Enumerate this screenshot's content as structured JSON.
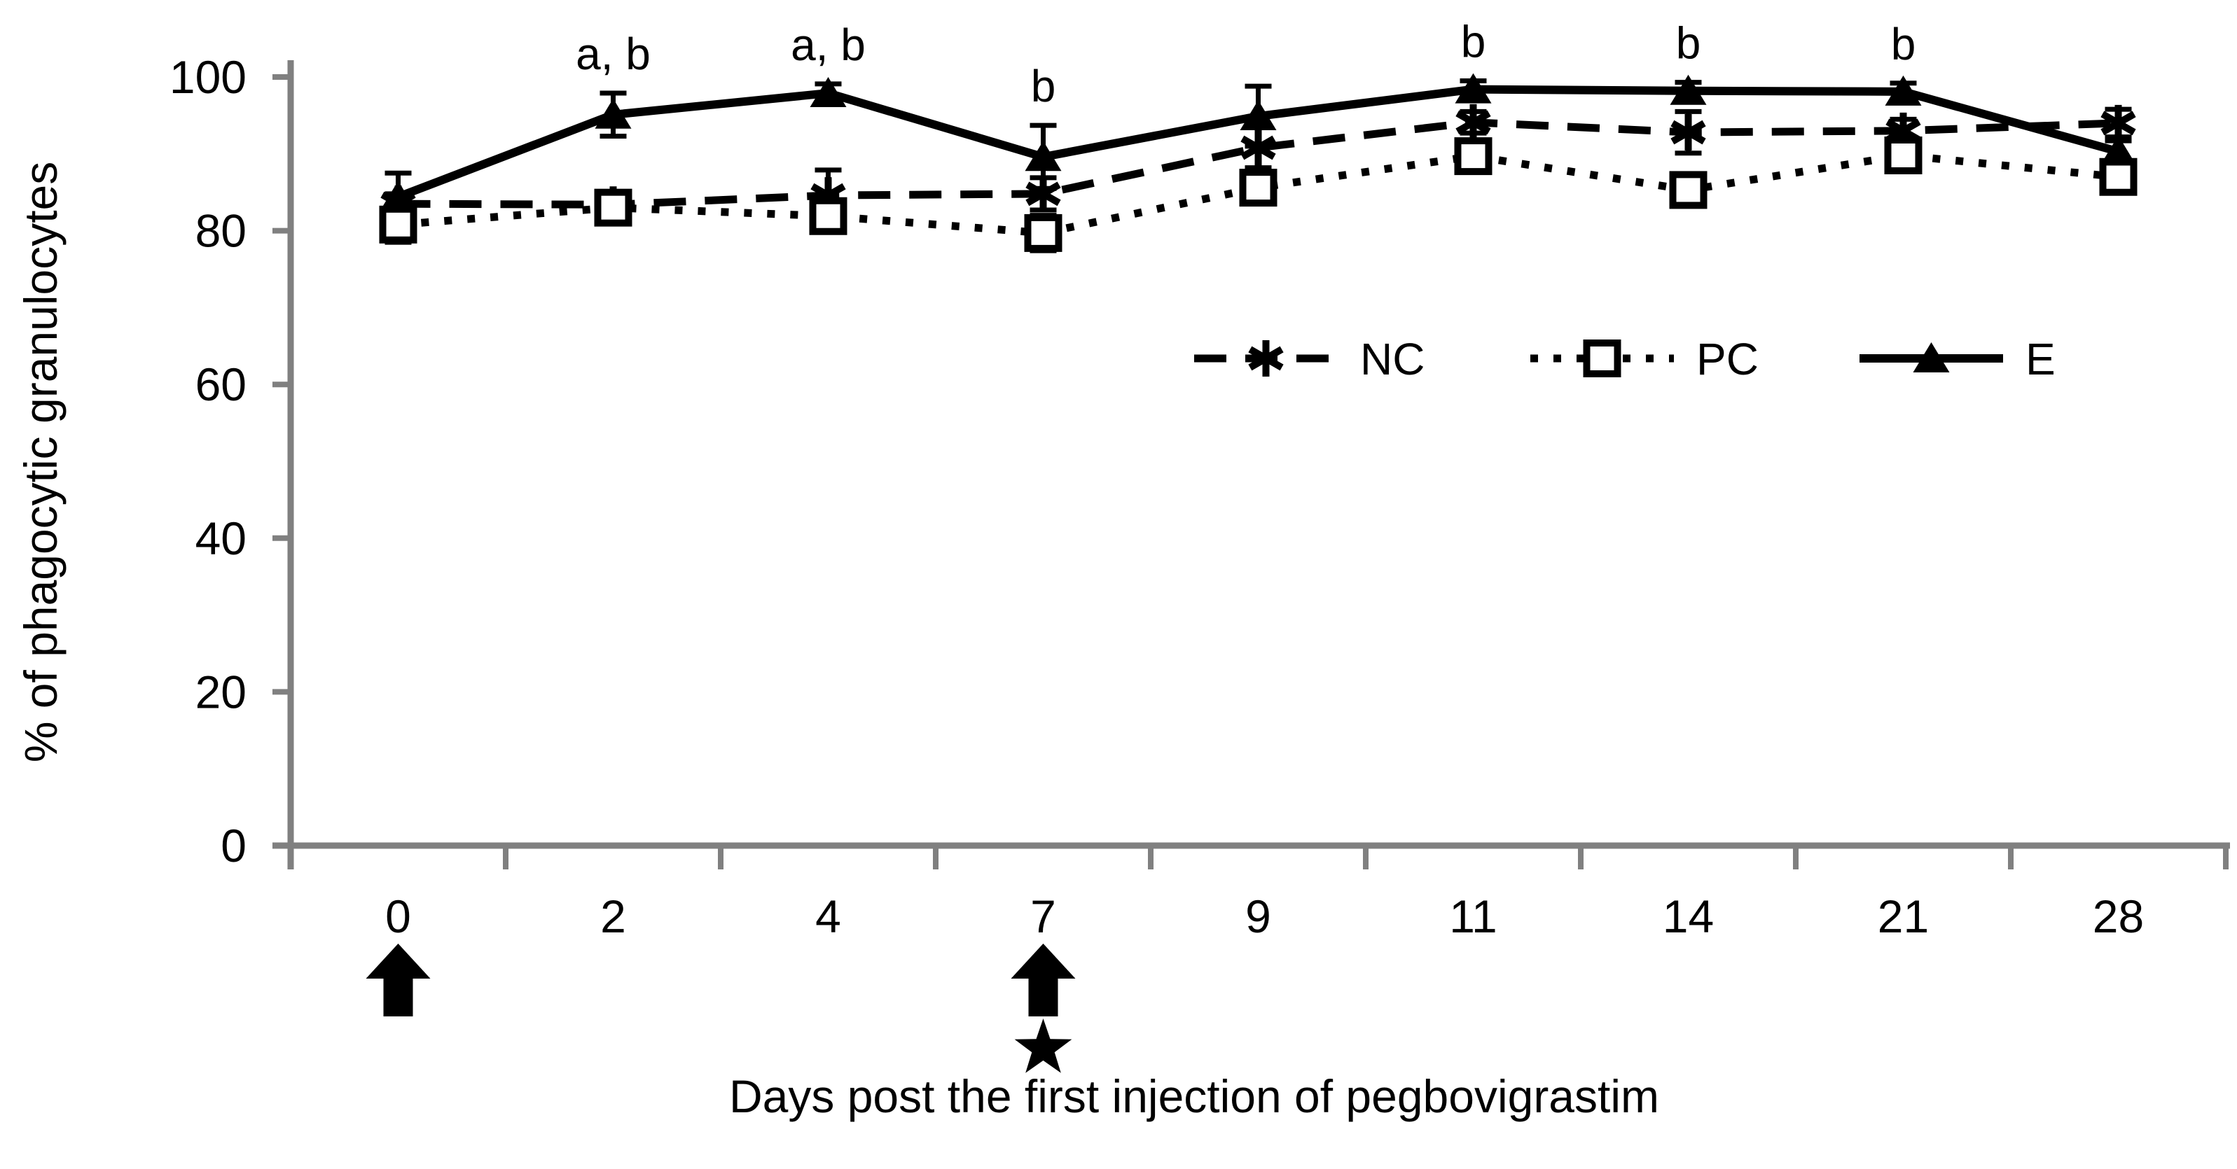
{
  "figure": {
    "background_color": "#ffffff",
    "axis_color": "#808080",
    "data_color": "#000000"
  },
  "chart_data": {
    "type": "line",
    "title": "",
    "xlabel": "Days post the first injection of pegbovigrastim",
    "ylabel": "% of phagocytic granulocytes",
    "categories": [
      "0",
      "2",
      "4",
      "7",
      "9",
      "11",
      "14",
      "21",
      "28"
    ],
    "y_tick_labels": [
      "0",
      "20",
      "40",
      "60",
      "80",
      "100"
    ],
    "y_ticks": [
      0,
      20,
      40,
      60,
      80,
      100
    ],
    "ylim": [
      0,
      100
    ],
    "grid": false,
    "legend_position": "inside-middle-right",
    "series": [
      {
        "name": "NC",
        "line_style": "dashed",
        "marker": "asterisk",
        "color": "#000000",
        "values": [
          83.5,
          83.4,
          84.6,
          84.8,
          90.8,
          94.1,
          92.8,
          93.0,
          94.0
        ],
        "errors": [
          1.3,
          1.4,
          3.3,
          2.1,
          2.6,
          1.4,
          2.7,
          1.5,
          1.8
        ]
      },
      {
        "name": "PC",
        "line_style": "dotted",
        "marker": "open-square",
        "color": "#000000",
        "values": [
          80.8,
          83.0,
          81.9,
          79.7,
          85.6,
          89.7,
          85.3,
          89.8,
          87.0
        ],
        "errors": [
          2.3,
          1.6,
          1.7,
          2.3,
          1.8,
          1.6,
          1.7,
          1.5,
          1.7
        ]
      },
      {
        "name": "E",
        "line_style": "solid",
        "marker": "filled-triangle",
        "color": "#000000",
        "values": [
          84.4,
          95.1,
          97.9,
          89.6,
          94.9,
          98.4,
          98.2,
          98.1,
          90.3
        ],
        "errors": [
          3.1,
          2.8,
          1.2,
          4.1,
          3.9,
          1.1,
          1.1,
          1.1,
          1.4
        ]
      }
    ],
    "point_annotations": [
      {
        "category_index": 1,
        "label": "a, b"
      },
      {
        "category_index": 2,
        "label": "a, b"
      },
      {
        "category_index": 3,
        "label": "b"
      },
      {
        "category_index": 5,
        "label": "b"
      },
      {
        "category_index": 6,
        "label": "b"
      },
      {
        "category_index": 7,
        "label": "b"
      }
    ],
    "event_markers": [
      {
        "category_index": 0,
        "symbols": [
          "up-arrow"
        ]
      },
      {
        "category_index": 3,
        "symbols": [
          "up-arrow",
          "star"
        ]
      }
    ]
  }
}
